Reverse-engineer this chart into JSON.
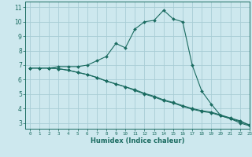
{
  "xlabel": "Humidex (Indice chaleur)",
  "xlim": [
    -0.5,
    23
  ],
  "ylim": [
    2.6,
    11.4
  ],
  "yticks": [
    3,
    4,
    5,
    6,
    7,
    8,
    9,
    10,
    11
  ],
  "xticks": [
    0,
    1,
    2,
    3,
    4,
    5,
    6,
    7,
    8,
    9,
    10,
    11,
    12,
    13,
    14,
    15,
    16,
    17,
    18,
    19,
    20,
    21,
    22,
    23
  ],
  "bg_color": "#cde8ee",
  "grid_color": "#a8cdd5",
  "line_color": "#1a6b60",
  "series1_x": [
    0,
    1,
    2,
    3,
    4,
    5,
    6,
    7,
    8,
    9,
    10,
    11,
    12,
    13,
    14,
    15,
    16,
    17,
    18,
    19,
    20,
    21,
    22,
    23
  ],
  "series1_y": [
    6.8,
    6.8,
    6.8,
    6.9,
    6.9,
    6.9,
    7.0,
    7.3,
    7.6,
    8.5,
    8.2,
    9.5,
    10.0,
    10.1,
    10.8,
    10.2,
    10.0,
    7.0,
    5.2,
    4.3,
    3.5,
    3.3,
    3.0,
    2.8
  ],
  "series2_x": [
    0,
    1,
    2,
    3,
    4,
    5,
    6,
    7,
    8,
    9,
    10,
    11,
    12,
    13,
    14,
    15,
    16,
    17,
    18,
    19,
    20,
    21,
    22,
    23
  ],
  "series2_y": [
    6.8,
    6.8,
    6.8,
    6.75,
    6.65,
    6.5,
    6.35,
    6.15,
    5.9,
    5.7,
    5.5,
    5.25,
    5.0,
    4.8,
    4.55,
    4.38,
    4.15,
    3.95,
    3.8,
    3.7,
    3.5,
    3.3,
    3.1,
    2.85
  ],
  "series3_x": [
    0,
    1,
    2,
    3,
    4,
    5,
    6,
    7,
    8,
    9,
    10,
    11,
    12,
    13,
    14,
    15,
    16,
    17,
    18,
    19,
    20,
    21,
    22,
    23
  ],
  "series3_y": [
    6.8,
    6.8,
    6.8,
    6.75,
    6.65,
    6.5,
    6.35,
    6.15,
    5.9,
    5.7,
    5.5,
    5.3,
    5.05,
    4.85,
    4.6,
    4.42,
    4.2,
    4.0,
    3.85,
    3.75,
    3.55,
    3.35,
    3.15,
    2.85
  ]
}
